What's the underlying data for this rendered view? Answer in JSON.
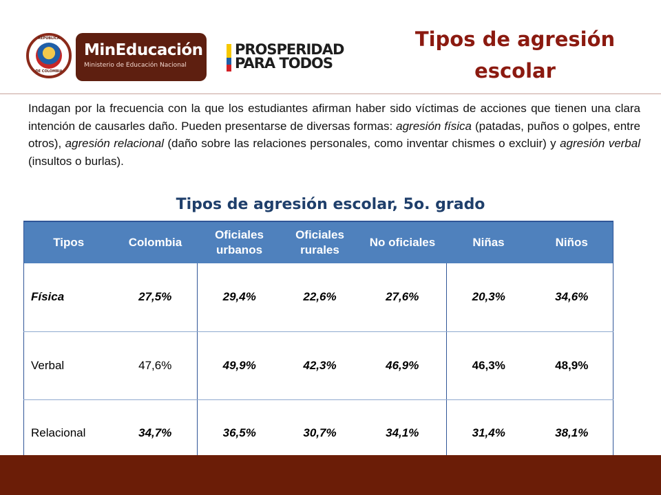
{
  "header": {
    "seal": {
      "top_text": "REPÚBLICA",
      "bottom_text": "DE COLOMBIA"
    },
    "min_logo": {
      "title": "MinEducación",
      "subtitle": "Ministerio de Educación Nacional"
    },
    "prosperidad": {
      "line1": "PROSPERIDAD",
      "line2": "PARA TODOS"
    },
    "title_line1": "Tipos de agresión",
    "title_line2": "escolar"
  },
  "intro": {
    "p1": "Indagan por la frecuencia con la que los estudiantes afirman haber sido víctimas de acciones que tienen una clara intención de causarles daño. Pueden presentarse de diversas formas: ",
    "t1": "agresión física",
    "p2": " (patadas, puños o golpes, entre otros), ",
    "t2": "agresión relacional",
    "p3": " (daño sobre las relaciones personales, como inventar chismes o excluir) y ",
    "t3": "agresión verbal",
    "p4": " (insultos o burlas)."
  },
  "table_title": "Tipos de agresión escolar, 5o. grado",
  "table": {
    "headers": [
      "Tipos",
      "Colombia",
      "Oficiales urbanos",
      "Oficiales rurales",
      "No oficiales",
      "Niñas",
      "Niños"
    ],
    "rows": [
      {
        "tipo": "Física",
        "values": [
          "27,5%",
          "29,4%",
          "22,6%",
          "27,6%",
          "20,3%",
          "34,6%"
        ]
      },
      {
        "tipo": "Verbal",
        "values": [
          "47,6%",
          "49,9%",
          "42,3%",
          "46,9%",
          "46,3%",
          "48,9%"
        ]
      },
      {
        "tipo": "Relacional",
        "values": [
          "34,7%",
          "36,5%",
          "30,7%",
          "34,1%",
          "31,4%",
          "38,1%"
        ]
      }
    ]
  },
  "colors": {
    "title_red": "#8b1a10",
    "table_header_blue": "#4f81bd",
    "table_title_blue": "#1f3f6b",
    "footer_brown": "#6b1d07",
    "min_logo_brown": "#5e1f10",
    "flag_yellow": "#f6c800",
    "flag_blue": "#1f5fa8",
    "flag_red": "#d21f26"
  },
  "icons": {
    "seal": "colombia-coat-of-arms-icon",
    "flag": "colombia-flag-icon"
  }
}
